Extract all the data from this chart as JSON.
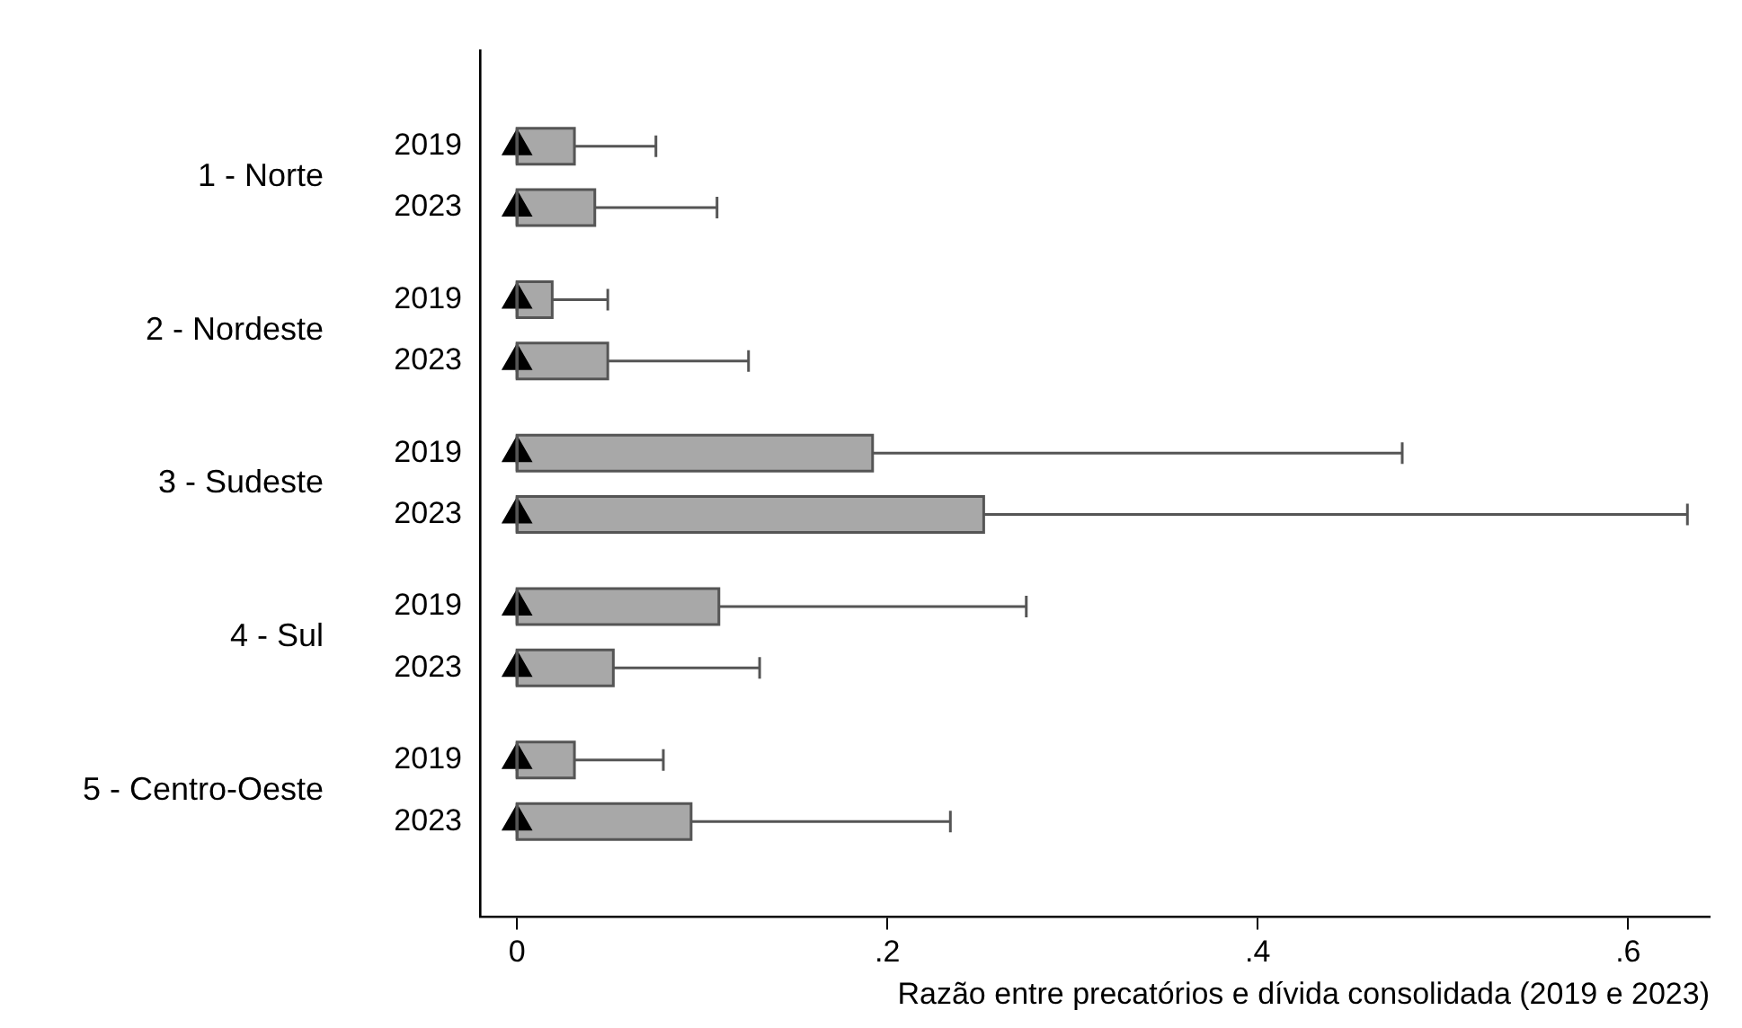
{
  "chart_data": {
    "type": "box",
    "orientation": "horizontal",
    "xlabel": "Razão entre precatórios e dívida consolidada (2019 e 2023)",
    "categories": [
      "2019",
      "2023",
      "2019",
      "2023",
      "2019",
      "2023",
      "2019",
      "2023",
      "2019",
      "2023"
    ],
    "annotations": [
      "1 - Norte",
      "2 - Nordeste",
      "3 - Sudeste",
      "4 - Sul",
      "5 - Centro-Oeste"
    ],
    "boxes": [
      {
        "low": 0,
        "q1": 0,
        "median": 0,
        "q3": 0.031,
        "high": 0.075
      },
      {
        "low": 0,
        "q1": 0,
        "median": 0,
        "q3": 0.042,
        "high": 0.108
      },
      {
        "low": 0,
        "q1": 0,
        "median": 0,
        "q3": 0.019,
        "high": 0.049
      },
      {
        "low": 0,
        "q1": 0,
        "median": 0,
        "q3": 0.049,
        "high": 0.125
      },
      {
        "low": 0,
        "q1": 0,
        "median": 0,
        "q3": 0.192,
        "high": 0.478
      },
      {
        "low": 0,
        "q1": 0,
        "median": 0,
        "q3": 0.252,
        "high": 0.632
      },
      {
        "low": 0,
        "q1": 0,
        "median": 0,
        "q3": 0.109,
        "high": 0.275
      },
      {
        "low": 0,
        "q1": 0,
        "median": 0,
        "q3": 0.052,
        "high": 0.131
      },
      {
        "low": 0,
        "q1": 0,
        "median": 0,
        "q3": 0.031,
        "high": 0.079
      },
      {
        "low": 0,
        "q1": 0,
        "median": 0,
        "q3": 0.094,
        "high": 0.234
      }
    ],
    "series": [
      {
        "type": "scatter",
        "color": "#000000",
        "values": [
          0,
          0,
          0,
          0,
          0,
          0,
          0,
          0,
          0,
          0
        ]
      }
    ],
    "color": "#a8a8a8",
    "marker": "triangle",
    "xlim": [
      -0.02,
      0.644
    ],
    "xticks": [
      0,
      {
        "value": 0.2,
        "label": ".2"
      },
      {
        "value": 0.4,
        "label": ".4"
      },
      {
        "value": 0.6,
        "label": ".6"
      }
    ],
    "legend": false
  }
}
